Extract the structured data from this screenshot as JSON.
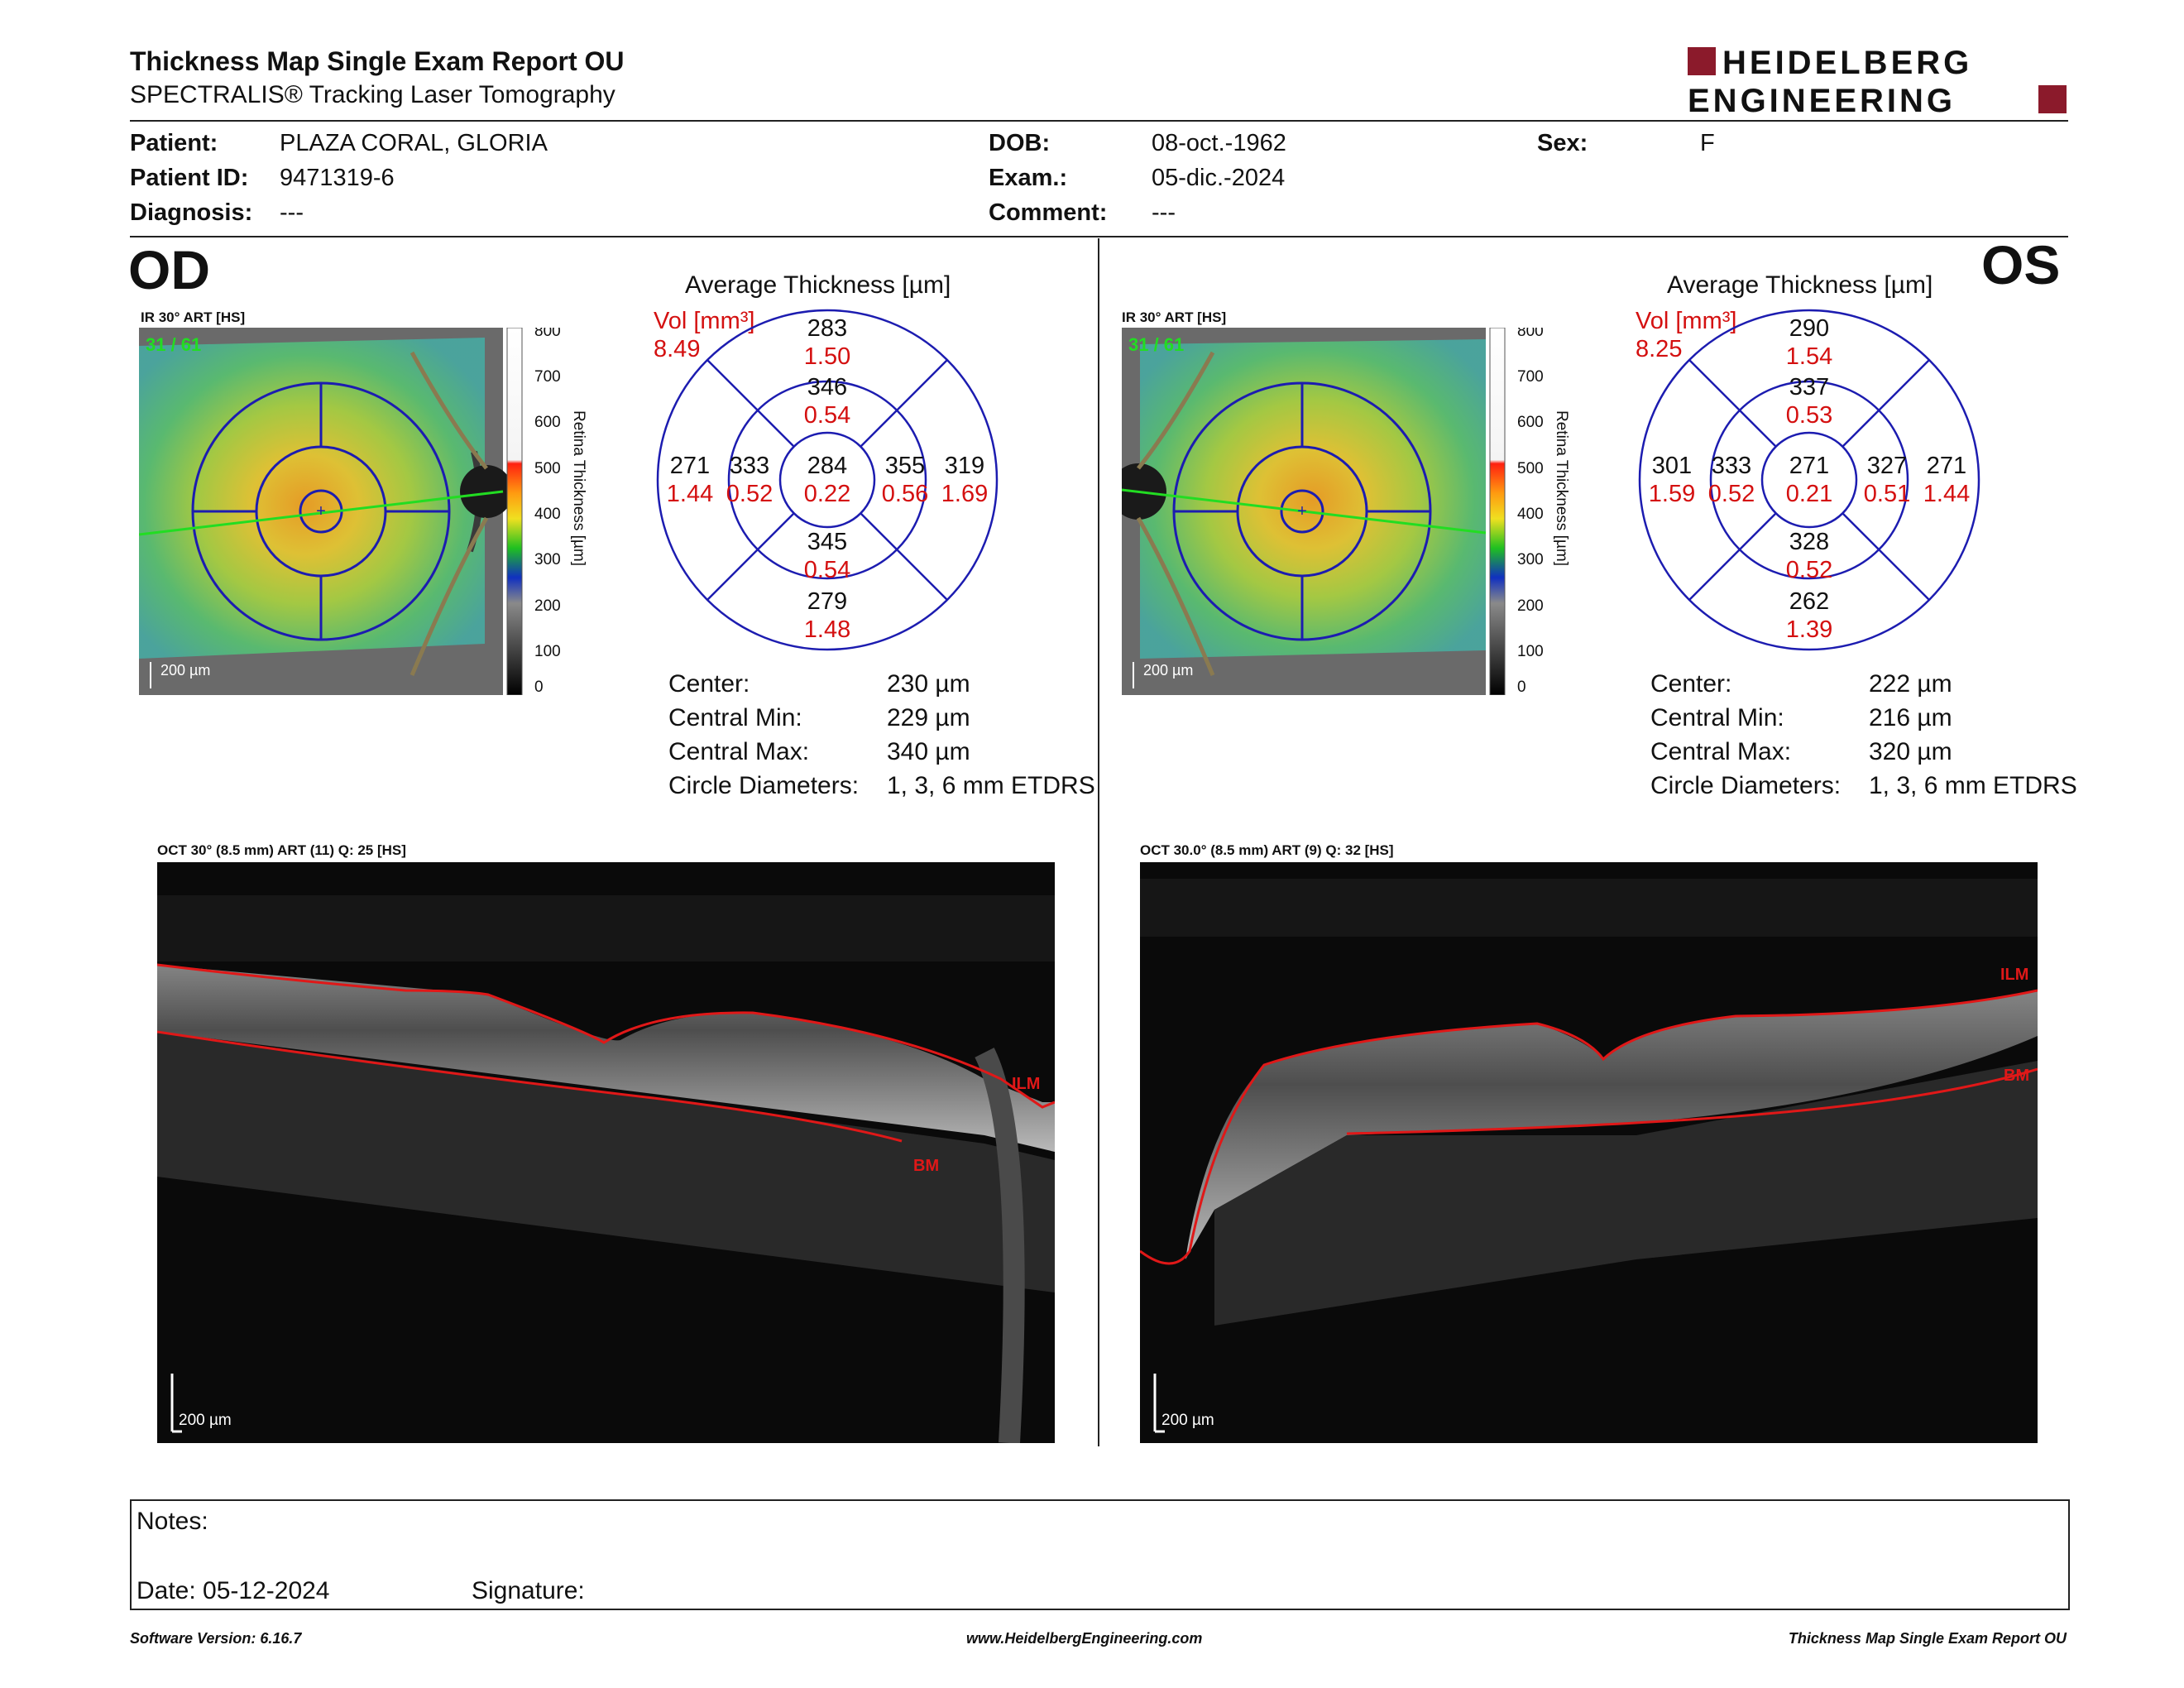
{
  "header": {
    "title": "Thickness Map Single Exam Report OU",
    "subtitle": "SPECTRALIS® Tracking Laser Tomography",
    "logo_line1": "HEIDELBERG",
    "logo_line2": "ENGINEERING",
    "brand_color": "#8b1a2b"
  },
  "patient": {
    "patient_label": "Patient:",
    "patient_value": "PLAZA CORAL, GLORIA",
    "id_label": "Patient ID:",
    "id_value": "9471319-6",
    "diag_label": "Diagnosis:",
    "diag_value": "---",
    "dob_label": "DOB:",
    "dob_value": "08-oct.-1962",
    "exam_label": "Exam.:",
    "exam_value": "05-dic.-2024",
    "comment_label": "Comment:",
    "comment_value": "---",
    "sex_label": "Sex:",
    "sex_value": "F"
  },
  "od": {
    "eye": "OD",
    "ir_caption": "IR 30° ART [HS]",
    "frame": "31 / 61",
    "scale": "200 µm",
    "colorbar_ticks": [
      "800",
      "700",
      "600",
      "500",
      "400",
      "300",
      "200",
      "100",
      "0"
    ],
    "colorbar_label": "Retina Thickness [µm]",
    "avg_title": "Average Thickness [µm]",
    "vol_label": "Vol [mm³]",
    "vol_value": "8.49",
    "etdrs": {
      "outer_sup_t": "283",
      "outer_sup_v": "1.50",
      "inner_sup_t": "346",
      "inner_sup_v": "0.54",
      "outer_left_t": "271",
      "outer_left_v": "1.44",
      "inner_left_t": "333",
      "inner_left_v": "0.52",
      "center_t": "284",
      "center_v": "0.22",
      "inner_right_t": "355",
      "inner_right_v": "0.56",
      "outer_right_t": "319",
      "outer_right_v": "1.69",
      "inner_inf_t": "345",
      "inner_inf_v": "0.54",
      "outer_inf_t": "279",
      "outer_inf_v": "1.48"
    },
    "stats": {
      "center_label": "Center:",
      "center_value": "230 µm",
      "cmin_label": "Central Min:",
      "cmin_value": "229 µm",
      "cmax_label": "Central Max:",
      "cmax_value": "340 µm",
      "circ_label": "Circle Diameters:",
      "circ_value": "1, 3, 6 mm ETDRS"
    },
    "oct_caption": "OCT 30° (8.5 mm) ART (11) Q: 25 [HS]",
    "ilm": "ILM",
    "bm": "BM",
    "oct_scale": "200 µm"
  },
  "os": {
    "eye": "OS",
    "ir_caption": "IR 30° ART [HS]",
    "frame": "31 / 61",
    "scale": "200 µm",
    "colorbar_ticks": [
      "800",
      "700",
      "600",
      "500",
      "400",
      "300",
      "200",
      "100",
      "0"
    ],
    "colorbar_label": "Retina Thickness [µm]",
    "avg_title": "Average Thickness [µm]",
    "vol_label": "Vol [mm³]",
    "vol_value": "8.25",
    "etdrs": {
      "outer_sup_t": "290",
      "outer_sup_v": "1.54",
      "inner_sup_t": "337",
      "inner_sup_v": "0.53",
      "outer_left_t": "301",
      "outer_left_v": "1.59",
      "inner_left_t": "333",
      "inner_left_v": "0.52",
      "center_t": "271",
      "center_v": "0.21",
      "inner_right_t": "327",
      "inner_right_v": "0.51",
      "outer_right_t": "271",
      "outer_right_v": "1.44",
      "inner_inf_t": "328",
      "inner_inf_v": "0.52",
      "outer_inf_t": "262",
      "outer_inf_v": "1.39"
    },
    "stats": {
      "center_label": "Center:",
      "center_value": "222 µm",
      "cmin_label": "Central Min:",
      "cmin_value": "216 µm",
      "cmax_label": "Central Max:",
      "cmax_value": "320 µm",
      "circ_label": "Circle Diameters:",
      "circ_value": "1, 3, 6 mm ETDRS"
    },
    "oct_caption": "OCT 30.0° (8.5 mm) ART (9) Q: 32 [HS]",
    "ilm": "ILM",
    "bm": "BM",
    "oct_scale": "200 µm"
  },
  "notes": {
    "notes_label": "Notes:",
    "date_label": "Date: 05-12-2024",
    "signature_label": "Signature:"
  },
  "footer": {
    "software": "Software Version: 6.16.7",
    "website": "www.HeidelbergEngineering.com",
    "report": "Thickness Map Single Exam Report OU"
  },
  "colors": {
    "grid_blue": "#1c1cb0",
    "value_red": "#d41010",
    "scan_green": "#22dd22",
    "ilm_red": "#e01818"
  }
}
